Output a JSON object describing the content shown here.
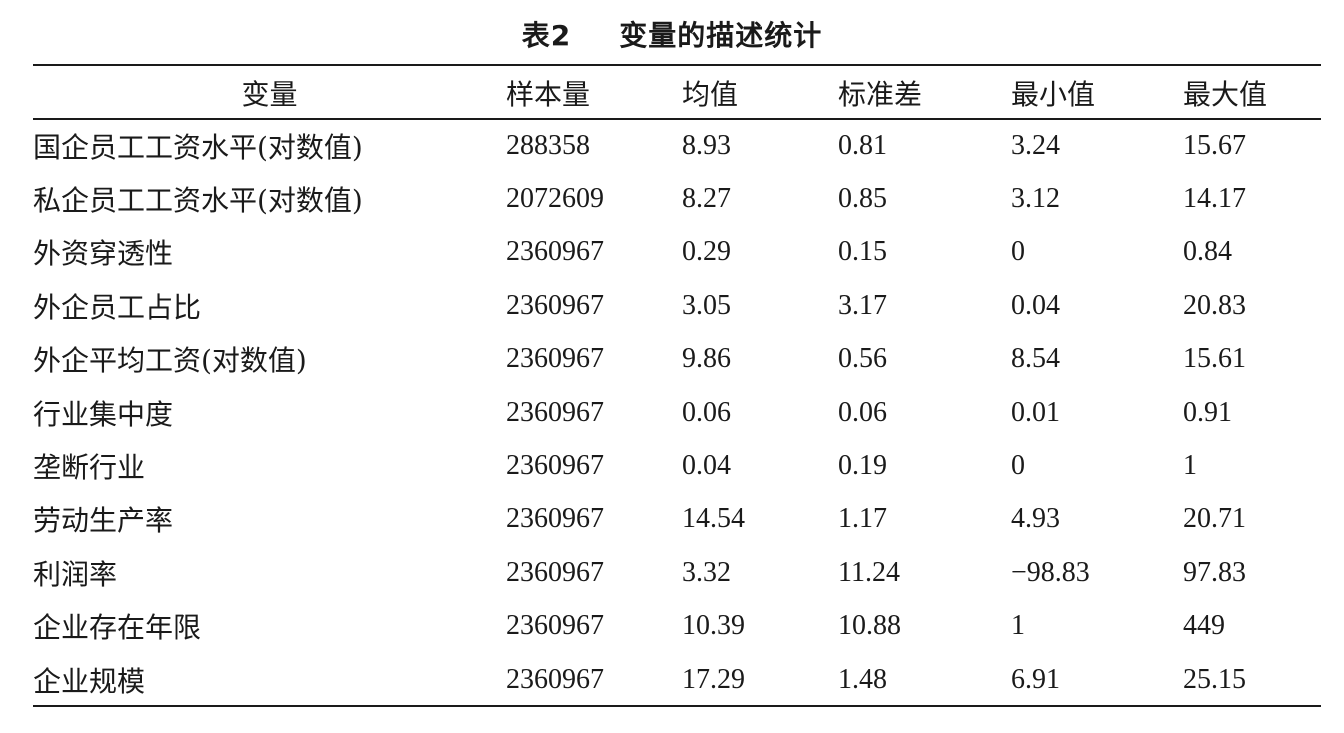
{
  "caption": {
    "number": "表2",
    "title": "变量的描述统计"
  },
  "table": {
    "headers": [
      "变量",
      "样本量",
      "均值",
      "标准差",
      "最小值",
      "最大值"
    ],
    "rows": [
      [
        "国企员工工资水平(对数值)",
        "288358",
        "8.93",
        "0.81",
        "3.24",
        "15.67"
      ],
      [
        "私企员工工资水平(对数值)",
        "2072609",
        "8.27",
        "0.85",
        "3.12",
        "14.17"
      ],
      [
        "外资穿透性",
        "2360967",
        "0.29",
        "0.15",
        "0",
        "0.84"
      ],
      [
        "外企员工占比",
        "2360967",
        "3.05",
        "3.17",
        "0.04",
        "20.83"
      ],
      [
        "外企平均工资(对数值)",
        "2360967",
        "9.86",
        "0.56",
        "8.54",
        "15.61"
      ],
      [
        "行业集中度",
        "2360967",
        "0.06",
        "0.06",
        "0.01",
        "0.91"
      ],
      [
        "垄断行业",
        "2360967",
        "0.04",
        "0.19",
        "0",
        "1"
      ],
      [
        "劳动生产率",
        "2360967",
        "14.54",
        "1.17",
        "4.93",
        "20.71"
      ],
      [
        "利润率",
        "2360967",
        "3.32",
        "11.24",
        "−98.83",
        "97.83"
      ],
      [
        "企业存在年限",
        "2360967",
        "10.39",
        "10.88",
        "1",
        "449"
      ],
      [
        "企业规模",
        "2360967",
        "17.29",
        "1.48",
        "6.91",
        "25.15"
      ]
    ]
  }
}
